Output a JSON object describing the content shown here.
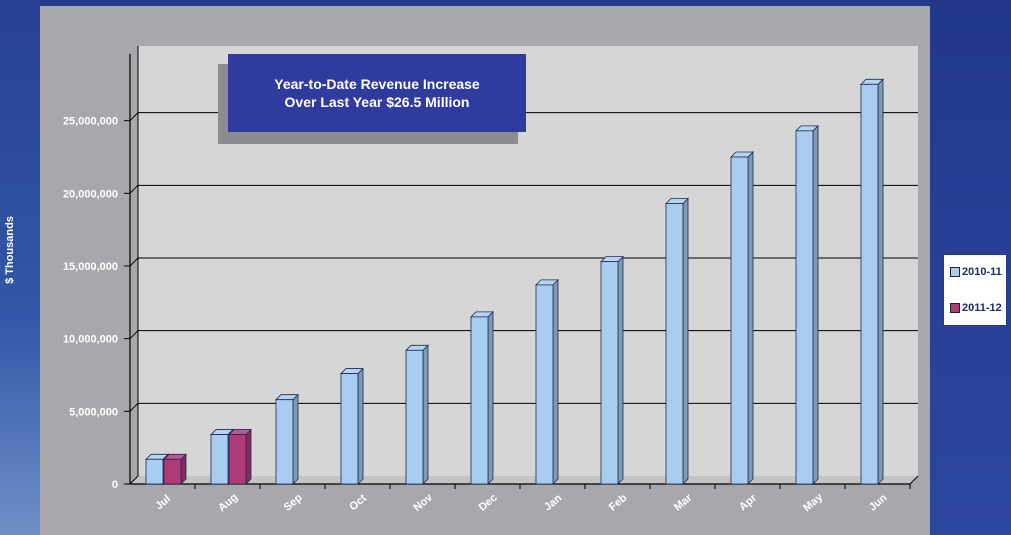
{
  "chart_data": {
    "type": "bar",
    "categories": [
      "Jul",
      "Aug",
      "Sep",
      "Oct",
      "Nov",
      "Dec",
      "Jan",
      "Feb",
      "Mar",
      "Apr",
      "May",
      "Jun"
    ],
    "series": [
      {
        "name": "2010-11",
        "values": [
          1700000,
          3400000,
          5800000,
          7600000,
          9200000,
          11500000,
          13700000,
          15300000,
          19300000,
          22500000,
          24300000,
          27500000
        ],
        "color": "#a9cdf0"
      },
      {
        "name": "2011-12",
        "values": [
          1700000,
          3400000,
          null,
          null,
          null,
          null,
          null,
          null,
          null,
          null,
          null,
          null
        ],
        "color": "#b03a78"
      }
    ],
    "title": "",
    "xlabel": "",
    "ylabel": "$ Thousands",
    "ylim": [
      0,
      30000000
    ],
    "y_ticks": [
      0,
      5000000,
      10000000,
      15000000,
      20000000,
      25000000
    ],
    "y_tick_labels": [
      "0",
      "5,000,000",
      "10,000,000",
      "15,000,000",
      "20,000,000",
      "25,000,000"
    ],
    "grid": "horizontal",
    "legend_placement": "right",
    "annotation": {
      "line1": "Year-to-Date Revenue Increase",
      "line2": "Over Last Year $26.5 Million"
    }
  },
  "colors": {
    "frame": "#2a3f8f",
    "plot_background": "#d6d6d6",
    "gridline": "#000000",
    "annotation_box": "#2f3b9e"
  }
}
